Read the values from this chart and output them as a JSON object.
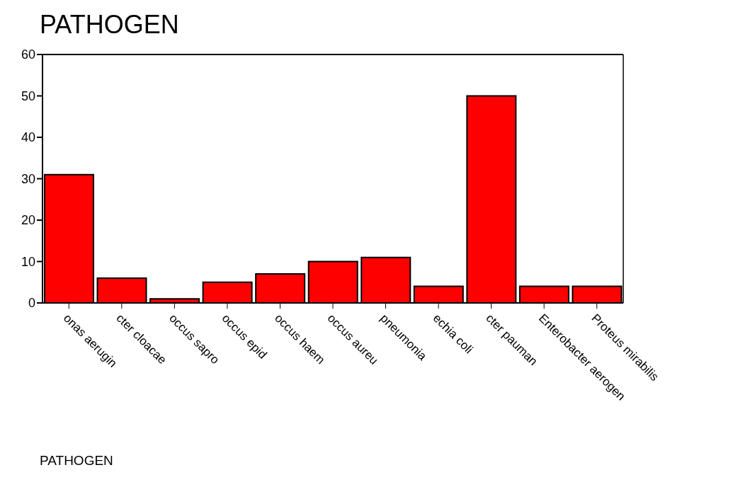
{
  "chart_data": {
    "type": "bar",
    "title": "PATHOGEN",
    "xlabel": "PATHOGEN",
    "categories": [
      "onas aerugin",
      "cter cloacae",
      "occus sapro",
      "occus epid",
      "occus haem",
      "occus aureu",
      "pneumonia",
      "echia coli",
      "cter pauman",
      "Enterobacter aerogen",
      "Proteus mirabilis"
    ],
    "values": [
      31,
      6,
      1,
      5,
      7,
      10,
      11,
      4,
      50,
      4,
      4
    ],
    "color": "#ff0000",
    "ylim": [
      0,
      60
    ],
    "yticks": [
      0,
      10,
      20,
      30,
      40,
      50,
      60
    ],
    "grid": false,
    "legend": false
  }
}
